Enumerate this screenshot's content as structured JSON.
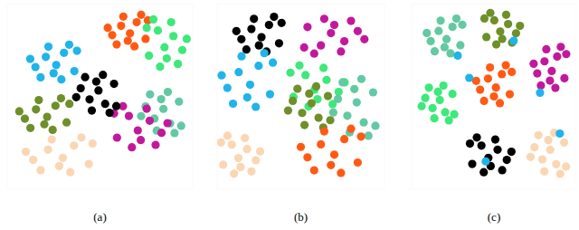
{
  "chart_data": [
    {
      "type": "scatter",
      "title": "(a)",
      "xlim": [
        0,
        100
      ],
      "ylim": [
        0,
        100
      ],
      "tick_labels": false,
      "series": [
        {
          "color": "#ff5a14",
          "x": [
            54.2,
            59,
            62.6,
            66.2,
            69.8,
            74.6,
            72.2,
            56.6,
            68.6,
            61.4,
            75.8,
            65
          ],
          "values": [
            87,
            78,
            93,
            84,
            90,
            81,
            94,
            83,
            77,
            88,
            91,
            80
          ]
        },
        {
          "color": "#3ee87a",
          "x": [
            96.8,
            92,
            88.4,
            84.8,
            81.2,
            76.4,
            78.8,
            94.4,
            82.4,
            89.6,
            75.2,
            86
          ],
          "values": [
            81,
            67.5,
            90,
            76.5,
            85.5,
            72,
            91.5,
            75,
            66,
            82.5,
            87,
            70.5
          ]
        },
        {
          "color": "#1fb4ea",
          "x": [
            12.4,
            18,
            22.2,
            26.4,
            30.6,
            36.2,
            33.4,
            15.2,
            29.2,
            20.8,
            37.6,
            25
          ],
          "values": [
            70.2,
            60.3,
            76.8,
            66.9,
            73.5,
            63.6,
            77.9,
            65.8,
            59.2,
            71.3,
            74.6,
            62.5
          ]
        },
        {
          "color": "#6e8f2a",
          "x": [
            6.5,
            12.5,
            17,
            21.5,
            26,
            32,
            29,
            9.5,
            24.5,
            15.5,
            33.5,
            20
          ],
          "values": [
            42,
            33,
            48,
            39,
            45,
            36,
            49,
            38,
            32,
            43,
            46,
            35
          ]
        },
        {
          "color": "#fbd6b3",
          "x": [
            10,
            18,
            24,
            30,
            36,
            44,
            40,
            14,
            34,
            22,
            46,
            28
          ],
          "values": [
            20.2,
            10.3,
            26.8,
            16.9,
            23.5,
            13.6,
            27.9,
            15.8,
            9.2,
            21.3,
            24.6,
            12.5
          ]
        },
        {
          "color": "#62c9a3",
          "x": [
            72.2,
            77,
            80.6,
            84.2,
            87.8,
            92.6,
            90.2,
            74.6,
            86.6,
            79.4,
            93.8,
            83
          ],
          "values": [
            39.4,
            51.1,
            31.6,
            43.3,
            35.5,
            47.2,
            30.3,
            44.6,
            52.4,
            38.1,
            34.2,
            48.5
          ]
        },
        {
          "color": "#c2199c",
          "x": [
            86.4,
            80,
            75.2,
            70.4,
            65.6,
            59.2,
            62.4,
            83.2,
            67.2,
            76.8,
            57.6,
            72
          ],
          "values": [
            35.6,
            23.9,
            43.4,
            31.7,
            39.5,
            27.8,
            44.7,
            30.4,
            22.6,
            36.9,
            40.8,
            26.5
          ]
        },
        {
          "color": "#000000",
          "x": [
            37.2,
            42,
            45.6,
            49.2,
            52.8,
            57.6,
            55.2,
            39.6,
            51.6,
            44.4,
            58.8,
            48
          ],
          "values": [
            49.6,
            60.4,
            42.4,
            53.2,
            46,
            56.8,
            41.2,
            54.4,
            61.6,
            48.4,
            44.8,
            58
          ]
        }
      ]
    },
    {
      "type": "scatter",
      "title": "(b)",
      "xlim": [
        0,
        100
      ],
      "ylim": [
        0,
        100
      ],
      "tick_labels": false,
      "series": [
        {
          "color": "#000000",
          "x": [
            11.5,
            17.5,
            22,
            26.5,
            31,
            37,
            34,
            14.5,
            29.5,
            20.5,
            38.5,
            25
          ],
          "values": [
            85.2,
            75.3,
            91.8,
            81.9,
            88.5,
            78.6,
            92.9,
            80.8,
            74.2,
            86.3,
            89.6,
            77.5
          ]
        },
        {
          "color": "#c2199c",
          "x": [
            88,
            80,
            74,
            68,
            62,
            54,
            58,
            84,
            64,
            76,
            52,
            70
          ],
          "values": [
            80.8,
            90.7,
            74.2,
            84.1,
            77.5,
            87.4,
            73.1,
            85.2,
            91.8,
            79.7,
            76.4,
            88.5
          ]
        },
        {
          "color": "#1fb4ea",
          "x": [
            2.7,
            9.5,
            14.6,
            19.7,
            24.8,
            31.6,
            28.2,
            6.1,
            23.1,
            12.9,
            33.3,
            18
          ],
          "values": [
            61.4,
            46.1,
            71.6,
            56.3,
            66.5,
            51.2,
            73.3,
            54.6,
            44.4,
            63.1,
            68.2,
            49.5
          ]
        },
        {
          "color": "#3ee87a",
          "x": [
            76.2,
            69,
            63.6,
            58.2,
            52.8,
            45.6,
            49.2,
            72.6,
            54.6,
            65.4,
            43.8,
            60
          ],
          "values": [
            57.6,
            45.9,
            65.4,
            53.7,
            61.5,
            49.8,
            66.7,
            52.4,
            44.6,
            58.9,
            62.8,
            48.5
          ]
        },
        {
          "color": "#62c9a3",
          "x": [
            69.4,
            75,
            79.2,
            83.4,
            87.6,
            93.2,
            90.4,
            72.2,
            86.2,
            77.8,
            94.6,
            82
          ],
          "values": [
            41.4,
            57.6,
            30.6,
            46.8,
            36,
            52.2,
            28.8,
            48.6,
            59.4,
            39.6,
            34.2,
            54
          ]
        },
        {
          "color": "#6e8f2a",
          "x": [
            42.4,
            48,
            52.2,
            56.4,
            60.6,
            66.2,
            63.4,
            45.2,
            59.2,
            50.8,
            67.6,
            55
          ],
          "values": [
            42.4,
            54.1,
            34.6,
            46.3,
            38.5,
            50.2,
            33.3,
            47.6,
            55.4,
            41.1,
            37.2,
            51.5
          ]
        },
        {
          "color": "#fbd6b3",
          "x": [
            25.7,
            20.5,
            16.6,
            12.7,
            8.8,
            3.6,
            6.2,
            23.1,
            10.1,
            17.9,
            2.3,
            14
          ],
          "values": [
            20.4,
            9.6,
            27.6,
            16.8,
            24,
            13.2,
            28.8,
            15.6,
            8.4,
            21.6,
            25.2,
            12
          ]
        },
        {
          "color": "#ff5a14",
          "x": [
            50,
            58,
            64,
            70,
            76,
            84,
            80,
            54,
            74,
            62,
            86,
            68
          ],
          "values": [
            22.8,
            10.2,
            31.2,
            18.6,
            27,
            14.4,
            32.6,
            17.2,
            8.8,
            24.2,
            28.4,
            13
          ]
        }
      ]
    },
    {
      "type": "scatter",
      "title": "(c)",
      "xlim": [
        0,
        100
      ],
      "ylim": [
        0,
        100
      ],
      "tick_labels": false,
      "series": [
        {
          "color": "#62c9a3",
          "x": [
            9.2,
            14,
            17.6,
            21.2,
            24.8,
            29.6,
            27.2,
            11.6,
            23.6,
            16.4,
            30.8,
            20
          ],
          "values": [
            84.2,
            74.3,
            90.8,
            80.9,
            87.5,
            77.6,
            91.9,
            79.8,
            73.2,
            85.3,
            88.6,
            76.5
          ]
        },
        {
          "color": "#6e8f2a",
          "x": [
            65.8,
            61,
            57.4,
            53.8,
            50.2,
            45.4,
            47.8,
            63.4,
            51.4,
            58.6,
            44.2,
            55
          ],
          "values": [
            88,
            79,
            94,
            85,
            91,
            82,
            95,
            84,
            78,
            89,
            92,
            81
          ]
        },
        {
          "color": "#c2199c",
          "x": [
            74.1,
            78.5,
            81.8,
            85.1,
            88.4,
            92.8,
            90.6,
            76.3,
            87.3,
            80.7,
            93.9,
            84
          ],
          "values": [
            67.6,
            55.9,
            75.4,
            63.7,
            71.5,
            59.8,
            76.7,
            62.4,
            54.6,
            68.9,
            72.8,
            58.5
          ]
        },
        {
          "color": "#3ee87a",
          "x": [
            6.1,
            10.5,
            13.8,
            17.1,
            20.4,
            24.8,
            22.6,
            8.3,
            19.3,
            12.7,
            25.9,
            16
          ],
          "values": [
            44.8,
            54.7,
            38.2,
            48.1,
            41.5,
            51.4,
            37.1,
            49.2,
            55.8,
            43.7,
            40.4,
            52.5
          ]
        },
        {
          "color": "#ff5a14",
          "x": [
            39.2,
            44,
            47.6,
            51.2,
            54.8,
            59.6,
            57.2,
            41.6,
            53.6,
            46.4,
            60.8,
            50
          ],
          "values": [
            58.4,
            47.6,
            65.6,
            54.8,
            62,
            51.2,
            66.8,
            53.6,
            46.4,
            59.6,
            63.2,
            50
          ]
        },
        {
          "color": "#000000",
          "x": [
            60.6,
            55,
            50.8,
            46.6,
            42.4,
            36.8,
            39.6,
            57.8,
            43.8,
            52.2,
            35.4,
            48
          ],
          "values": [
            20.2,
            10.3,
            26.8,
            16.9,
            23.5,
            13.6,
            27.9,
            15.8,
            9.2,
            21.3,
            24.6,
            12.5
          ]
        },
        {
          "color": "#fbd6b3",
          "x": [
            72.2,
            77,
            80.6,
            84.2,
            87.8,
            92.6,
            90.2,
            74.6,
            86.6,
            79.4,
            93.8,
            83
          ],
          "values": [
            17.4,
            29.1,
            9.6,
            21.3,
            13.5,
            25.2,
            8.3,
            22.6,
            30.4,
            16.1,
            12.2,
            26.5
          ]
        },
        {
          "color": "#1fb4ea",
          "x": [
            28,
            62,
            78,
            90,
            45,
            35
          ],
          "values": [
            72,
            80,
            52,
            30,
            15,
            60
          ]
        }
      ]
    }
  ]
}
